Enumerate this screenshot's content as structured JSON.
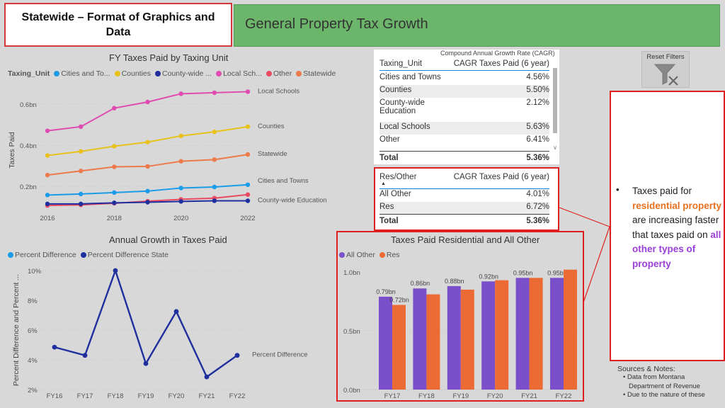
{
  "slide": {
    "title": "Statewide – Format of Graphics and Data",
    "header": "General Property Tax Growth"
  },
  "line_chart": {
    "title": "FY Taxes Paid by Taxing Unit",
    "legend_label": "Taxing_Unit",
    "legend_items": [
      {
        "label": "Cities and To...",
        "color": "#1a9ce8"
      },
      {
        "label": "Counties",
        "color": "#e8c21a"
      },
      {
        "label": "County-wide ...",
        "color": "#1f2f9e"
      },
      {
        "label": "Local Sch...",
        "color": "#e04bb0"
      },
      {
        "label": "Other",
        "color": "#e84a5f"
      },
      {
        "label": "Statewide",
        "color": "#ec7a4a"
      }
    ],
    "ylabel": "Taxes Paid",
    "yticks": [
      "0.6bn",
      "0.4bn",
      "0.2bn"
    ],
    "xticks": [
      "2016",
      "2018",
      "2020",
      "2022"
    ]
  },
  "growth_chart": {
    "title": "Annual Growth in Taxes Paid",
    "legend_items": [
      {
        "label": "Percent Difference",
        "color": "#1a9ce8"
      },
      {
        "label": "Percent Difference State",
        "color": "#1f2f9e"
      }
    ],
    "ylabel": "Percent Difference and Percent ...",
    "yticks": [
      "10%",
      "8%",
      "6%",
      "4%",
      "2%"
    ],
    "xticks": [
      "FY16",
      "FY17",
      "FY18",
      "FY19",
      "FY20",
      "FY21",
      "FY22"
    ],
    "end_label": "Percent Difference"
  },
  "cagr_table": {
    "caption": "Compound Annual Growth Rate (CAGR)",
    "col1": "Taxing_Unit",
    "col2": "CAGR Taxes Paid (6 year)",
    "rows": [
      {
        "name": "Cities and Towns",
        "value": "4.56%"
      },
      {
        "name": "Counties",
        "value": "5.50%"
      },
      {
        "name": "County-wide",
        "name2": "Education",
        "value": "2.12%"
      },
      {
        "name": "Local Schools",
        "value": "5.63%"
      },
      {
        "name": "Other",
        "value": "6.41%"
      }
    ],
    "total_label": "Total",
    "total_value": "5.36%"
  },
  "res_table": {
    "col1": "Res/Other",
    "col2": "CAGR Taxes Paid (6 year)",
    "rows": [
      {
        "name": "All Other",
        "value": "4.01%"
      },
      {
        "name": "Res",
        "value": "6.72%"
      }
    ],
    "total_label": "Total",
    "total_value": "5.36%"
  },
  "bar_chart": {
    "title": "Taxes Paid Residential and All Other",
    "legend_items": [
      {
        "label": "All Other",
        "color": "#7b4fc9"
      },
      {
        "label": "Res",
        "color": "#ec6b35"
      }
    ],
    "yticks": [
      "1.0bn",
      "0.5bn",
      "0.0bn"
    ]
  },
  "reset_button": {
    "label": "Reset Filters"
  },
  "callout": {
    "bullet": "•",
    "t1": "Taxes paid for ",
    "t2": "residential property",
    "t3": " are increasing faster that taxes paid on ",
    "t4": "all other types of property"
  },
  "notes": {
    "title": "Sources & Notes:",
    "items": [
      "• Data from Montana",
      "Department of Revenue",
      "• Due to the nature of these"
    ]
  },
  "chart_data": [
    {
      "type": "line",
      "title": "FY Taxes Paid by Taxing Unit",
      "xlabel": "",
      "ylabel": "Taxes Paid",
      "x": [
        2016,
        2017,
        2018,
        2019,
        2020,
        2021,
        2022
      ],
      "ylim": [
        0.08,
        0.72
      ],
      "series": [
        {
          "name": "Local Schools",
          "color": "#e04bb0",
          "end_label": "Local Schools",
          "values": [
            0.47,
            0.49,
            0.58,
            0.61,
            0.65,
            0.655,
            0.66
          ]
        },
        {
          "name": "Counties",
          "color": "#e8c21a",
          "end_label": "Counties",
          "values": [
            0.35,
            0.37,
            0.395,
            0.415,
            0.445,
            0.465,
            0.49
          ]
        },
        {
          "name": "Statewide",
          "color": "#ec7a4a",
          "end_label": "Statewide",
          "values": [
            0.255,
            0.275,
            0.295,
            0.297,
            0.322,
            0.33,
            0.355
          ]
        },
        {
          "name": "Cities and Towns",
          "color": "#1a9ce8",
          "end_label": "Cities and Towns",
          "values": [
            0.158,
            0.163,
            0.17,
            0.177,
            0.192,
            0.197,
            0.208
          ]
        },
        {
          "name": "Other",
          "color": "#e84a5f",
          "end_label": "",
          "values": [
            0.107,
            0.11,
            0.118,
            0.128,
            0.137,
            0.143,
            0.16
          ]
        },
        {
          "name": "County-wide Education",
          "color": "#1f2f9e",
          "end_label": "County-wide Education",
          "values": [
            0.115,
            0.115,
            0.12,
            0.123,
            0.127,
            0.13,
            0.13
          ]
        }
      ]
    },
    {
      "type": "line",
      "title": "Annual Growth in Taxes Paid",
      "xlabel": "",
      "ylabel": "Percent Difference and Percent ...",
      "categories": [
        "FY16",
        "FY17",
        "FY18",
        "FY19",
        "FY20",
        "FY21",
        "FY22"
      ],
      "ylim": [
        2,
        10
      ],
      "series": [
        {
          "name": "Percent Difference",
          "color": "#1f2f9e",
          "values": [
            4.85,
            4.3,
            10.0,
            3.75,
            7.25,
            2.85,
            4.3
          ]
        }
      ]
    },
    {
      "type": "bar",
      "title": "Taxes Paid Residential and All Other",
      "categories": [
        "FY17",
        "FY18",
        "FY19",
        "FY20",
        "FY21",
        "FY22"
      ],
      "ylim": [
        0,
        1.0
      ],
      "series": [
        {
          "name": "All Other",
          "color": "#7b4fc9",
          "values": [
            0.79,
            0.86,
            0.88,
            0.92,
            0.95,
            0.95
          ],
          "labels": [
            "0.79bn",
            "0.86bn",
            "0.88bn",
            "0.92bn",
            "0.95bn",
            "0.95bn"
          ]
        },
        {
          "name": "Res",
          "color": "#ec6b35",
          "values": [
            0.72,
            0.81,
            0.85,
            0.93,
            0.95,
            1.02
          ],
          "labels": [
            "0.72bn",
            "",
            "",
            "",
            "",
            ""
          ]
        }
      ]
    }
  ]
}
